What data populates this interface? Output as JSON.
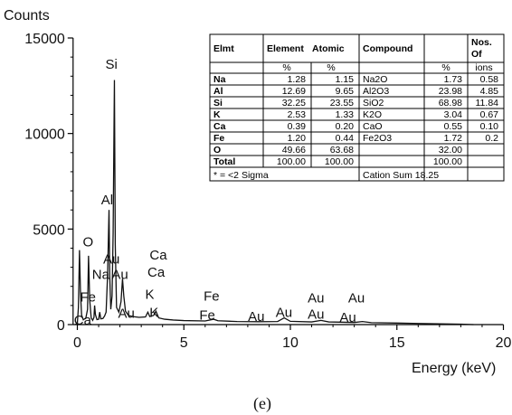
{
  "chart_data": {
    "type": "line",
    "ylabel": "Counts",
    "xlabel": "Energy (keV)",
    "caption": "(e)",
    "xlim": [
      -0.2,
      20
    ],
    "ylim": [
      0,
      15000
    ],
    "xticks": [
      0,
      5,
      10,
      15,
      20
    ],
    "yticks": [
      0,
      5000,
      10000,
      15000
    ],
    "spectrum": [
      [
        -0.1,
        0
      ],
      [
        0.0,
        60
      ],
      [
        0.05,
        900
      ],
      [
        0.1,
        3900
      ],
      [
        0.15,
        1600
      ],
      [
        0.2,
        500
      ],
      [
        0.28,
        250
      ],
      [
        0.4,
        350
      ],
      [
        0.48,
        800
      ],
      [
        0.525,
        3600
      ],
      [
        0.58,
        1300
      ],
      [
        0.65,
        350
      ],
      [
        0.72,
        220
      ],
      [
        0.78,
        380
      ],
      [
        0.81,
        1000
      ],
      [
        0.85,
        520
      ],
      [
        0.92,
        260
      ],
      [
        1.0,
        280
      ],
      [
        1.05,
        650
      ],
      [
        1.1,
        300
      ],
      [
        1.2,
        320
      ],
      [
        1.28,
        450
      ],
      [
        1.35,
        650
      ],
      [
        1.42,
        2600
      ],
      [
        1.487,
        6000
      ],
      [
        1.52,
        2600
      ],
      [
        1.57,
        800
      ],
      [
        1.63,
        1500
      ],
      [
        1.68,
        4800
      ],
      [
        1.74,
        12800
      ],
      [
        1.78,
        4200
      ],
      [
        1.84,
        900
      ],
      [
        1.95,
        650
      ],
      [
        2.05,
        1200
      ],
      [
        2.12,
        2400
      ],
      [
        2.18,
        1500
      ],
      [
        2.26,
        700
      ],
      [
        2.4,
        480
      ],
      [
        2.6,
        420
      ],
      [
        2.9,
        380
      ],
      [
        3.2,
        400
      ],
      [
        3.31,
        650
      ],
      [
        3.4,
        420
      ],
      [
        3.58,
        480
      ],
      [
        3.69,
        700
      ],
      [
        3.82,
        350
      ],
      [
        4.1,
        280
      ],
      [
        4.5,
        240
      ],
      [
        5.0,
        210
      ],
      [
        6.0,
        190
      ],
      [
        6.4,
        280
      ],
      [
        6.6,
        200
      ],
      [
        7.5,
        160
      ],
      [
        8.5,
        150
      ],
      [
        9.4,
        160
      ],
      [
        9.71,
        350
      ],
      [
        10.0,
        170
      ],
      [
        11.0,
        140
      ],
      [
        11.44,
        220
      ],
      [
        11.8,
        140
      ],
      [
        13.0,
        110
      ],
      [
        13.38,
        160
      ],
      [
        13.8,
        100
      ],
      [
        15.0,
        80
      ],
      [
        16.0,
        60
      ],
      [
        17.0,
        40
      ],
      [
        18.0,
        20
      ],
      [
        18.6,
        0
      ]
    ],
    "peak_labels": [
      {
        "text": "Si",
        "x": 1.6,
        "y": 13400
      },
      {
        "text": "Al",
        "x": 1.4,
        "y": 6300
      },
      {
        "text": "O",
        "x": 0.5,
        "y": 4100
      },
      {
        "text": "Au",
        "x": 1.6,
        "y": 3200
      },
      {
        "text": "Na",
        "x": 1.1,
        "y": 2400
      },
      {
        "text": "Au",
        "x": 2.0,
        "y": 2400
      },
      {
        "text": "Ca",
        "x": 3.8,
        "y": 3400
      },
      {
        "text": "Ca",
        "x": 3.7,
        "y": 2500
      },
      {
        "text": "Fe",
        "x": 0.5,
        "y": 1200
      },
      {
        "text": "K",
        "x": 3.4,
        "y": 1350
      },
      {
        "text": "Ca",
        "x": 0.25,
        "y": 0
      },
      {
        "text": "Au",
        "x": 2.3,
        "y": 350
      },
      {
        "text": "K",
        "x": 3.6,
        "y": 400
      },
      {
        "text": "Fe",
        "x": 6.3,
        "y": 1250
      },
      {
        "text": "Fe",
        "x": 6.1,
        "y": 250
      },
      {
        "text": "Au",
        "x": 8.4,
        "y": 200
      },
      {
        "text": "Au",
        "x": 9.7,
        "y": 400
      },
      {
        "text": "Au",
        "x": 11.2,
        "y": 1150
      },
      {
        "text": "Au",
        "x": 13.1,
        "y": 1150
      },
      {
        "text": "Au",
        "x": 11.2,
        "y": 300
      },
      {
        "text": "Au",
        "x": 12.7,
        "y": 150
      }
    ],
    "table": {
      "header": [
        "Elmt",
        "Element",
        "Atomic",
        "Compound",
        "",
        "Nos. Of"
      ],
      "units": [
        "",
        "%",
        "%",
        "",
        "%",
        "ions"
      ],
      "rows": [
        [
          "Na",
          "1.28",
          "1.15",
          "Na2O",
          "1.73",
          "0.58"
        ],
        [
          "Al",
          "12.69",
          "9.65",
          "Al2O3",
          "23.98",
          "4.85"
        ],
        [
          "Si",
          "32.25",
          "23.55",
          "SiO2",
          "68.98",
          "11.84"
        ],
        [
          "K",
          "2.53",
          "1.33",
          "K2O",
          "3.04",
          "0.67"
        ],
        [
          "Ca",
          "0.39",
          "0.20",
          "CaO",
          "0.55",
          "0.10"
        ],
        [
          "Fe",
          "1.20",
          "0.44",
          "Fe2O3",
          "1.72",
          "0.2"
        ],
        [
          "O",
          "49.66",
          "63.68",
          "",
          "32.00",
          ""
        ],
        [
          "Total",
          "100.00",
          "100.00",
          "",
          "100.00",
          ""
        ]
      ],
      "footer_left": "* = <2 Sigma",
      "footer_right": "Cation Sum  18.25"
    }
  },
  "colors": {
    "line": "#111111",
    "axis": "#000000",
    "table_border": "#000000",
    "table_fill": "#ffffff"
  }
}
